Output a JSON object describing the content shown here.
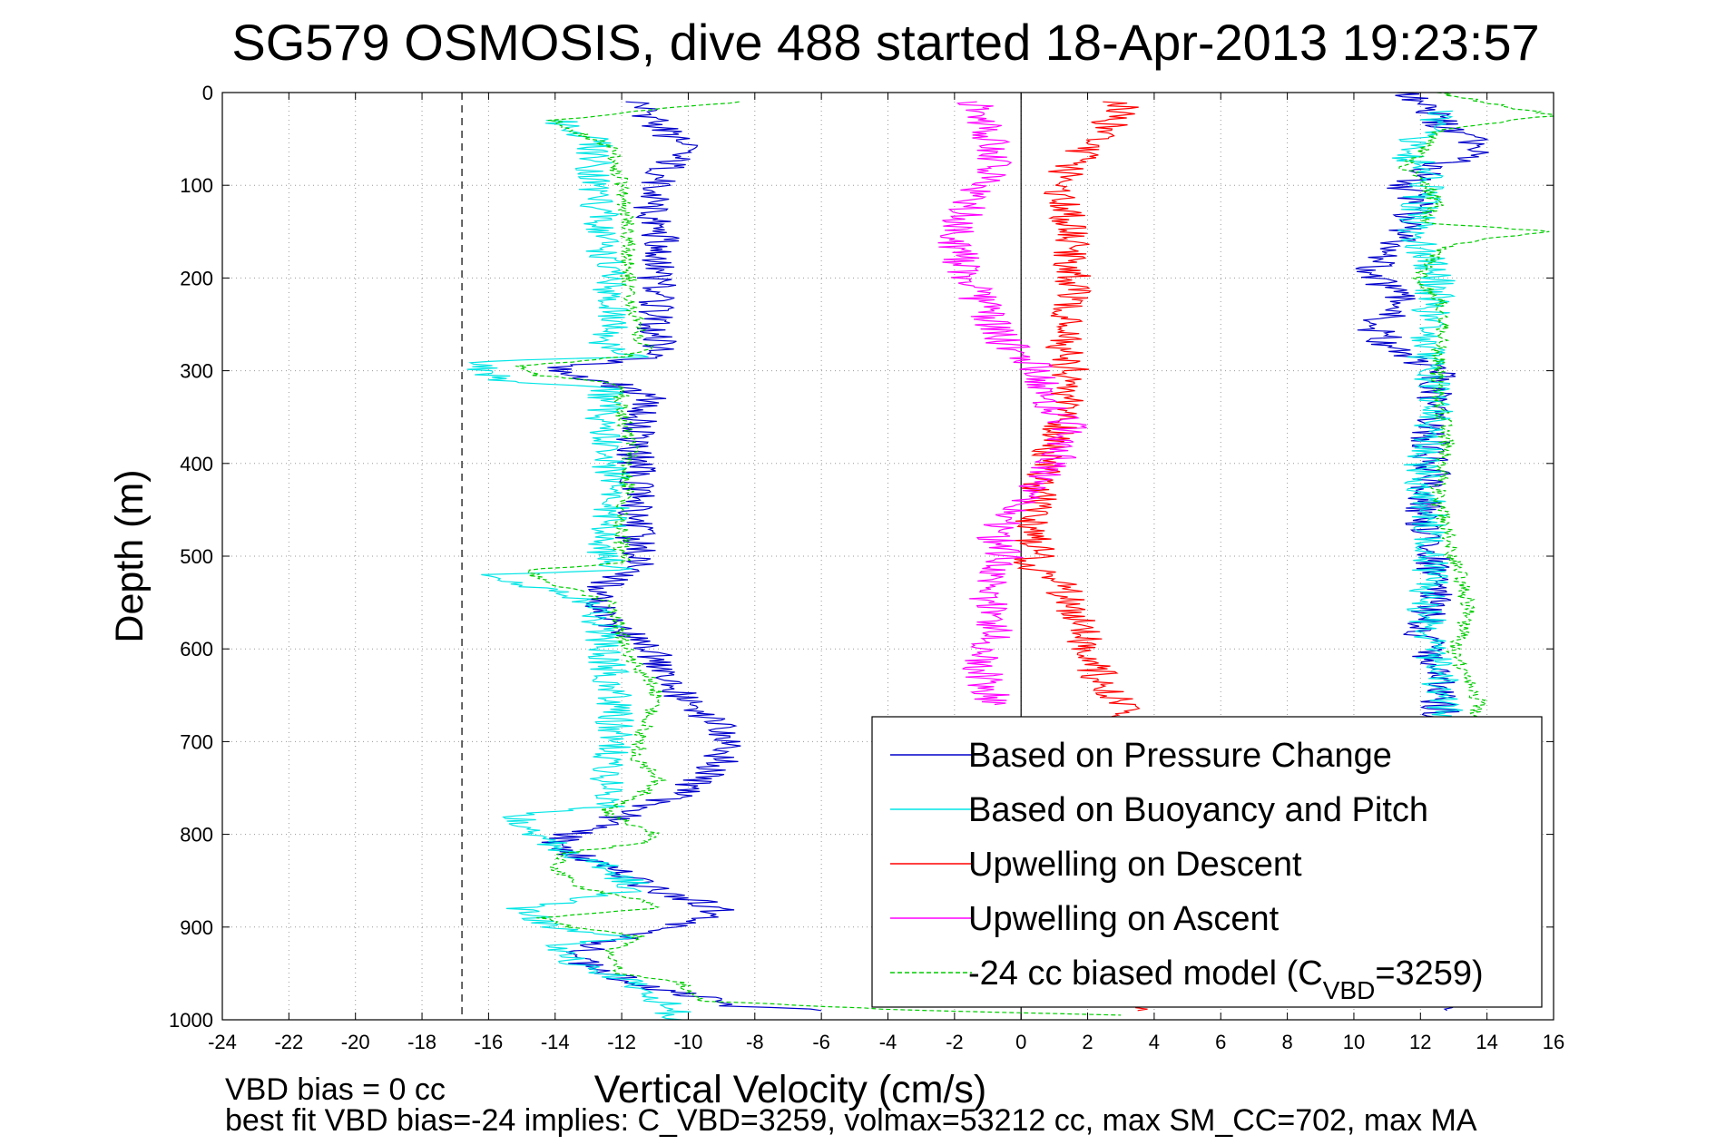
{
  "chart_data": {
    "type": "line",
    "title": "SG579 OSMOSIS, dive 488 started 18-Apr-2013 19:23:57",
    "xlabel": "Vertical Velocity (cm/s)",
    "ylabel": "Depth (m)",
    "xlim": [
      -24,
      16
    ],
    "ylim": [
      0,
      1000
    ],
    "y_reversed": true,
    "grid": true,
    "x_ticks": [
      -24,
      -22,
      -20,
      -18,
      -16,
      -14,
      -12,
      -10,
      -8,
      -6,
      -4,
      -2,
      0,
      2,
      4,
      6,
      8,
      10,
      12,
      14,
      16
    ],
    "y_ticks": [
      0,
      100,
      200,
      300,
      400,
      500,
      600,
      700,
      800,
      900,
      1000
    ],
    "legend_position": "lower-right",
    "reference_lines": [
      {
        "x": 0,
        "style": "solid"
      },
      {
        "x": -16.8,
        "style": "dashed"
      }
    ],
    "series": [
      {
        "name": "Based on Pressure Change",
        "color": "#0000cc",
        "style": "solid",
        "segments": [
          {
            "x": [
              -11.5,
              -11,
              -10.2,
              -11,
              -11.2,
              -10.8,
              -11,
              -10.9,
              -11,
              -10.8,
              -10.9,
              -11,
              -11,
              -10.8,
              -13.5,
              -14,
              -13.8,
              -12.2,
              -11,
              -11.5,
              -11.6,
              -11.5,
              -11.6,
              -11.6,
              -11.5,
              -11.5,
              -12.5,
              -12.8,
              -11.5,
              -11,
              -10.5,
              -10,
              -9.2,
              -8.8,
              -9,
              -9.5,
              -10.5,
              -12,
              -13.5,
              -14,
              -13.5,
              -12,
              -11,
              -10,
              -9,
              -10.5,
              -12.5,
              -13.5,
              -12.5,
              -11.5,
              -10.5,
              -9,
              -8.5,
              -6
            ],
            "y": [
              10,
              30,
              60,
              100,
              130,
              160,
              200,
              220,
              250,
              265,
              270,
              275,
              280,
              285,
              295,
              300,
              305,
              315,
              330,
              350,
              380,
              420,
              450,
              480,
              500,
              507,
              530,
              560,
              590,
              610,
              640,
              660,
              680,
              700,
              720,
              740,
              760,
              780,
              800,
              810,
              820,
              840,
              860,
              870,
              880,
              900,
              915,
              930,
              950,
              960,
              970,
              980,
              985,
              990
            ]
          },
          {
            "x": [
              11.5,
              12.2,
              12.8,
              14,
              12.5,
              11.5,
              12,
              11.5,
              11,
              10.5,
              11,
              11.5,
              10.5,
              11,
              12,
              12.5,
              12.5,
              12.2,
              12.3,
              12.3,
              12,
              12.3,
              12.5,
              12,
              12.5,
              12.5,
              12.7,
              12.8
            ],
            "y": [
              0,
              20,
              40,
              60,
              80,
              100,
              120,
              150,
              170,
              190,
              210,
              230,
              250,
              270,
              290,
              300,
              320,
              340,
              380,
              420,
              460,
              500,
              540,
              580,
              620,
              660,
              680,
              990
            ]
          }
        ]
      },
      {
        "name": "Based on Buoyancy and Pitch",
        "color": "#00e5e5",
        "style": "solid",
        "segments": [
          {
            "x": [
              -14,
              -12.8,
              -12.8,
              -12.6,
              -12.5,
              -12.3,
              -12.4,
              -12.5,
              -12.3,
              -12,
              -11.5,
              -16,
              -16.2,
              -15.5,
              -12.5,
              -12.5,
              -12.3,
              -12.4,
              -12.5,
              -12.4,
              -12.5,
              -12.5,
              -12,
              -15.8,
              -15,
              -13.5,
              -12.8,
              -12.5,
              -12.5,
              -12.2,
              -12.2,
              -12.5,
              -12.5,
              -15,
              -14.8,
              -14.5,
              -13.5,
              -12.2,
              -11.5,
              -15,
              -14,
              -11.8,
              -14,
              -13.5,
              -11.5,
              -10.5,
              -10.2
            ],
            "y": [
              30,
              50,
              100,
              140,
              180,
              220,
              250,
              270,
              275,
              280,
              285,
              290,
              300,
              310,
              320,
              380,
              420,
              460,
              490,
              500,
              507,
              510,
              515,
              520,
              530,
              540,
              560,
              580,
              610,
              650,
              700,
              740,
              770,
              780,
              790,
              800,
              820,
              840,
              860,
              880,
              900,
              910,
              920,
              940,
              960,
              990,
              1000
            ]
          },
          {
            "x": [
              12.5,
              12.2,
              11.5,
              12.2,
              12,
              11.8,
              12.5,
              12.2,
              12.2,
              12.5,
              12,
              12.2,
              12.3,
              12.2,
              12.5,
              12.7,
              13
            ],
            "y": [
              20,
              40,
              60,
              90,
              120,
              150,
              200,
              260,
              300,
              350,
              400,
              450,
              500,
              560,
              620,
              660,
              680
            ]
          }
        ]
      },
      {
        "name": "Upwelling on Descent",
        "color": "#ff0000",
        "style": "solid",
        "segments": [
          {
            "x": [
              3,
              3,
              2,
              1,
              1.5,
              1.5,
              1.5,
              1.2,
              1.5,
              1.3,
              1.5,
              1.2,
              0.8,
              0.5,
              0.3,
              0.5,
              0.3,
              0.2,
              1,
              1.5,
              1.8,
              2,
              2.2,
              2.5,
              3,
              3.2,
              3.3,
              3.5
            ],
            "y": [
              10,
              20,
              60,
              100,
              140,
              180,
              220,
              260,
              300,
              320,
              340,
              360,
              400,
              440,
              480,
              500,
              505,
              510,
              520,
              550,
              580,
              600,
              620,
              640,
              660,
              670,
              680,
              990
            ]
          }
        ]
      },
      {
        "name": "Upwelling on Ascent",
        "color": "#ff00ff",
        "style": "solid",
        "segments": [
          {
            "x": [
              -1.5,
              -1,
              -0.8,
              -1.5,
              -2,
              -1.8,
              -1.5,
              -1,
              -0.5,
              0.5,
              0.8,
              1.5,
              1.2,
              1,
              0.5,
              0.3,
              -0.5,
              -0.8,
              -0.5,
              -1,
              -0.8,
              -1.2,
              -0.8
            ],
            "y": [
              10,
              40,
              80,
              120,
              150,
              180,
              210,
              240,
              270,
              300,
              330,
              360,
              380,
              400,
              420,
              440,
              460,
              480,
              500,
              540,
              580,
              620,
              660
            ]
          }
        ]
      },
      {
        "name": "-24 cc biased model (C_VBD=3259)",
        "color": "#00cc00",
        "style": "dashed",
        "segments": [
          {
            "x": [
              -8.5,
              -11.5,
              -14,
              -12.3,
              -12,
              -11.8,
              -11.8,
              -11.8,
              -11.5,
              -11.5,
              -11,
              -12,
              -15,
              -14.5,
              -12,
              -12,
              -11.7,
              -11.8,
              -12,
              -12,
              -11.8,
              -15,
              -14,
              -12.3,
              -12,
              -11.8,
              -11,
              -11,
              -11.5,
              -11.5,
              -10.8,
              -11.5,
              -12.5,
              -12,
              -11,
              -11.5,
              -13.8,
              -14,
              -13,
              -11.5,
              -11,
              -14.5,
              -13.5,
              -11.5,
              -12.5,
              -12,
              -10.2,
              -9.5,
              -3,
              3
            ],
            "y": [
              10,
              20,
              30,
              60,
              100,
              140,
              180,
              220,
              250,
              270,
              275,
              285,
              295,
              305,
              315,
              350,
              380,
              420,
              460,
              500,
              507,
              515,
              530,
              550,
              580,
              610,
              640,
              660,
              700,
              720,
              740,
              760,
              775,
              785,
              800,
              810,
              820,
              840,
              860,
              870,
              880,
              890,
              900,
              910,
              930,
              950,
              960,
              980,
              990,
              995
            ]
          },
          {
            "x": [
              12.5,
              16,
              12.5,
              12.2,
              11.5,
              12.2,
              12.5,
              12,
              16,
              13.5,
              12.5,
              12,
              12.7,
              12.5,
              12.8,
              12.5,
              13,
              13.5,
              13,
              13.5,
              13.8,
              13.5
            ],
            "y": [
              0,
              25,
              40,
              60,
              80,
              100,
              120,
              140,
              150,
              160,
              170,
              200,
              230,
              300,
              380,
              440,
              500,
              560,
              600,
              640,
              660,
              680
            ]
          }
        ]
      }
    ]
  },
  "footer": {
    "line1": "VBD bias = 0 cc",
    "line2": "best fit VBD bias=-24 implies: C_VBD=3259, volmax=53212 cc, max SM_CC=702, max MA"
  }
}
